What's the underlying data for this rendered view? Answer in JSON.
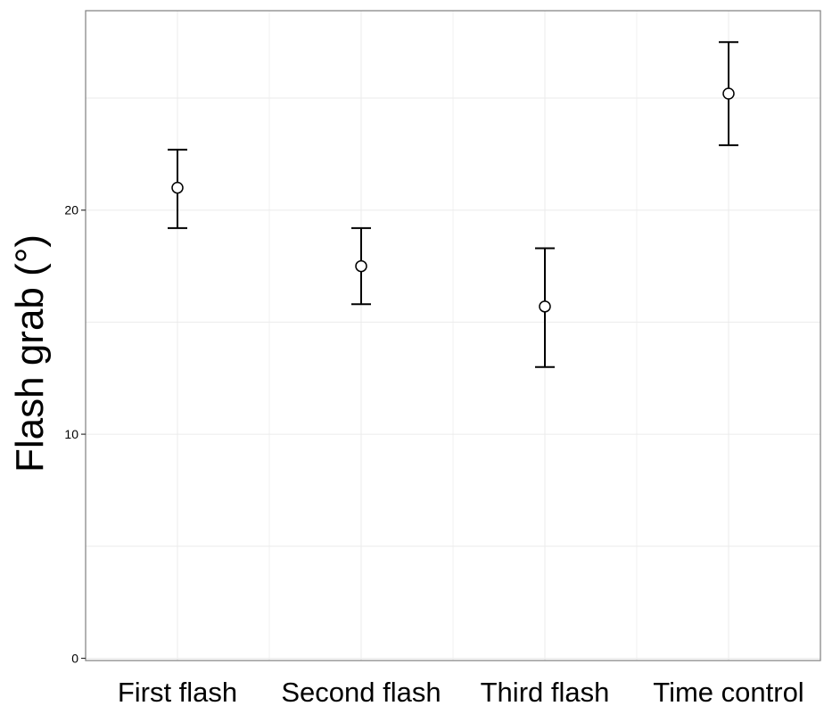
{
  "chart_data": {
    "type": "scatter",
    "ylabel": "Flash grab (°)",
    "xlabel": "",
    "title": "",
    "categories": [
      "First flash",
      "Second flash",
      "Third flash",
      "Time control"
    ],
    "yticks": [
      0,
      10,
      20
    ],
    "ylim": [
      -0.1,
      28.9
    ],
    "grid": true,
    "series": [
      {
        "values": [
          21.0,
          17.5,
          15.7,
          25.2
        ],
        "error_low": [
          19.2,
          15.8,
          13.0,
          22.9
        ],
        "error_high": [
          22.7,
          19.2,
          18.3,
          27.5
        ]
      }
    ],
    "colors": {
      "error_bar": "#000000",
      "marker_fill": "#ffffff",
      "marker_stroke": "#000000",
      "grid": "#ebebeb",
      "panel_border": "#7f7f7f"
    }
  }
}
